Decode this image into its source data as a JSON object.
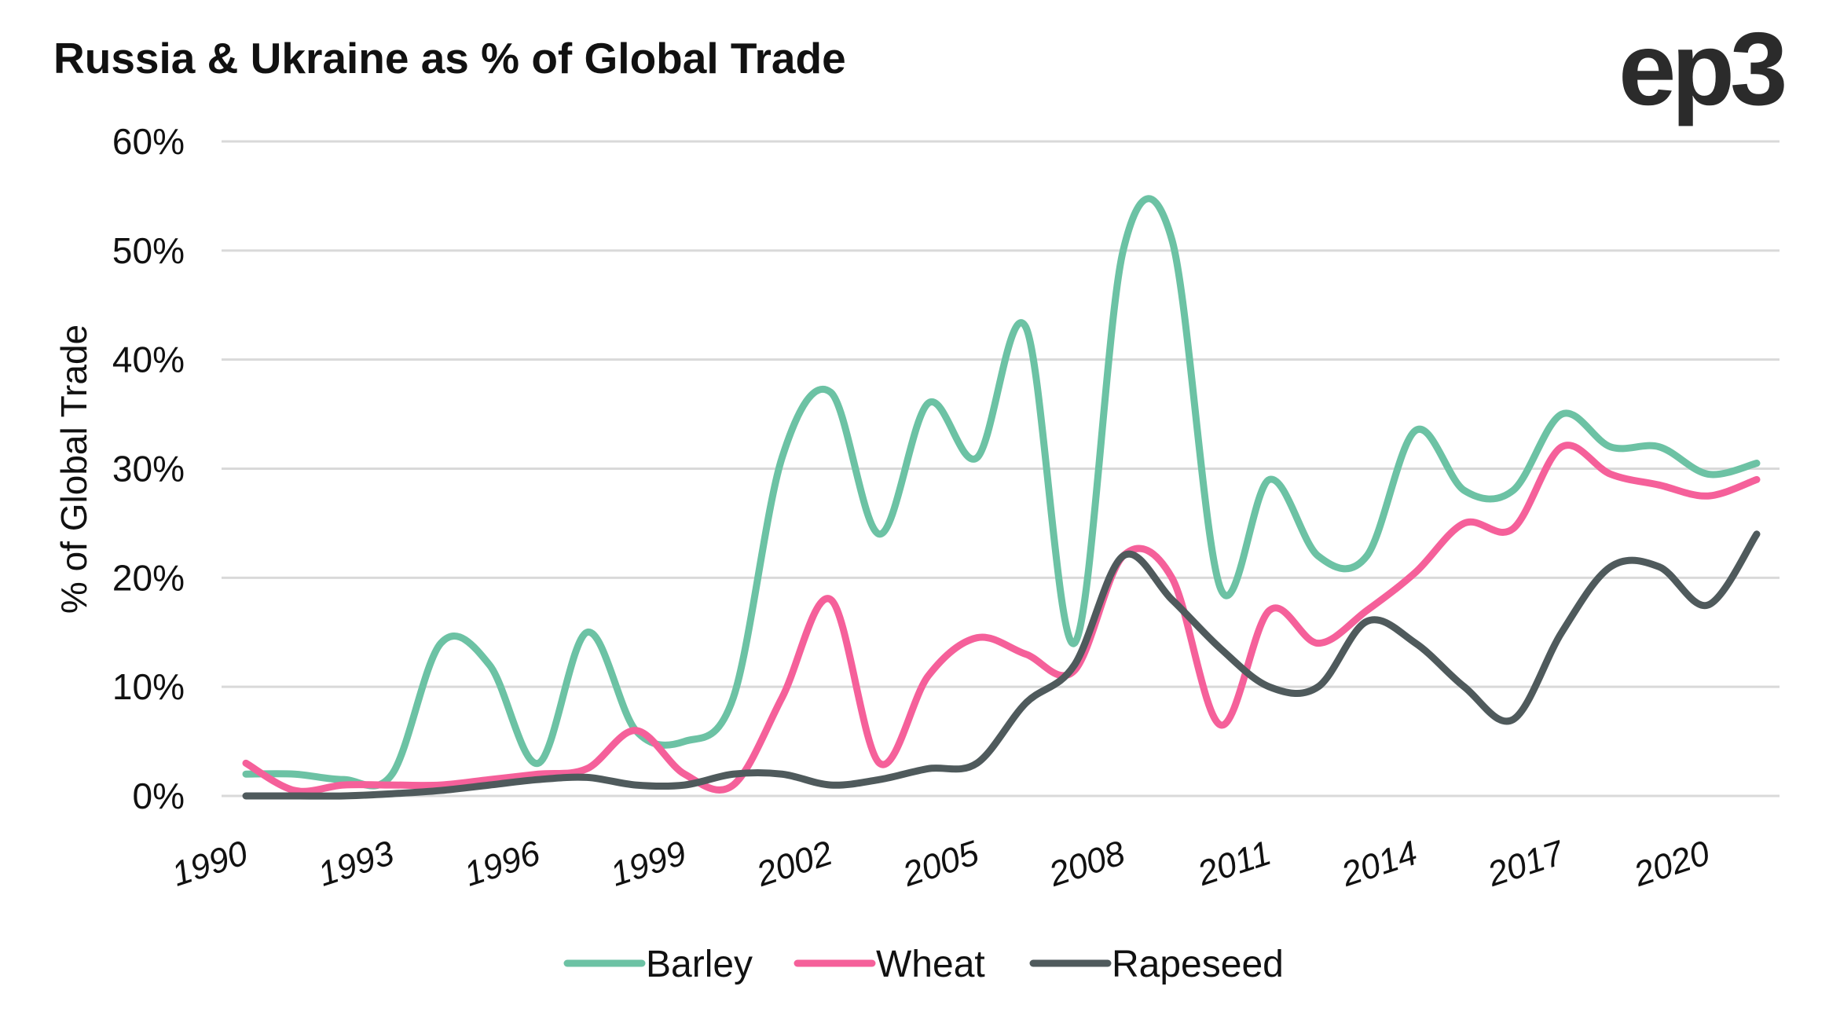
{
  "title": "Russia & Ukraine as % of Global Trade",
  "logo_text": "ep3",
  "chart_data": {
    "type": "line",
    "title": "Russia & Ukraine as % of Global Trade",
    "xlabel": "",
    "ylabel": "% of Global Trade",
    "ylim": [
      0,
      60
    ],
    "yticks": [
      "0%",
      "10%",
      "20%",
      "30%",
      "40%",
      "50%",
      "60%"
    ],
    "xticks": [
      "1990",
      "1993",
      "1996",
      "1999",
      "2002",
      "2005",
      "2008",
      "2011",
      "2014",
      "2017",
      "2020"
    ],
    "x": [
      1990,
      1991,
      1992,
      1993,
      1994,
      1995,
      1996,
      1997,
      1998,
      1999,
      2000,
      2001,
      2002,
      2003,
      2004,
      2005,
      2006,
      2007,
      2008,
      2009,
      2010,
      2011,
      2012,
      2013,
      2014,
      2015,
      2016,
      2017,
      2018,
      2019,
      2020,
      2021
    ],
    "grid": true,
    "legend_position": "bottom",
    "series": [
      {
        "name": "Barley",
        "color": "#6cc2a4",
        "values": [
          2,
          2,
          1.5,
          2,
          14,
          12,
          3,
          15,
          6,
          5,
          9,
          31,
          37,
          24,
          36,
          31,
          43,
          14,
          50,
          51,
          19,
          29,
          22,
          22,
          33.5,
          28,
          28,
          35,
          32,
          32,
          29.5,
          30.5
        ]
      },
      {
        "name": "Wheat",
        "color": "#f5609a",
        "values": [
          3,
          0.5,
          1,
          1,
          1,
          1.5,
          2,
          2.5,
          6,
          2,
          1,
          9,
          18,
          3,
          11,
          14.5,
          13,
          11.5,
          22,
          20,
          6.5,
          17,
          14,
          17,
          20.5,
          25,
          24.5,
          32,
          29.5,
          28.5,
          27.5,
          29
        ]
      },
      {
        "name": "Rapeseed",
        "color": "#4f5a5c",
        "values": [
          0,
          0,
          0,
          0.2,
          0.5,
          1,
          1.5,
          1.7,
          1,
          1,
          2,
          2,
          1,
          1.5,
          2.5,
          3,
          8.5,
          12,
          22,
          18,
          13.5,
          10,
          10,
          16,
          14,
          10,
          7,
          15,
          21,
          21,
          17.5,
          24
        ]
      }
    ]
  }
}
